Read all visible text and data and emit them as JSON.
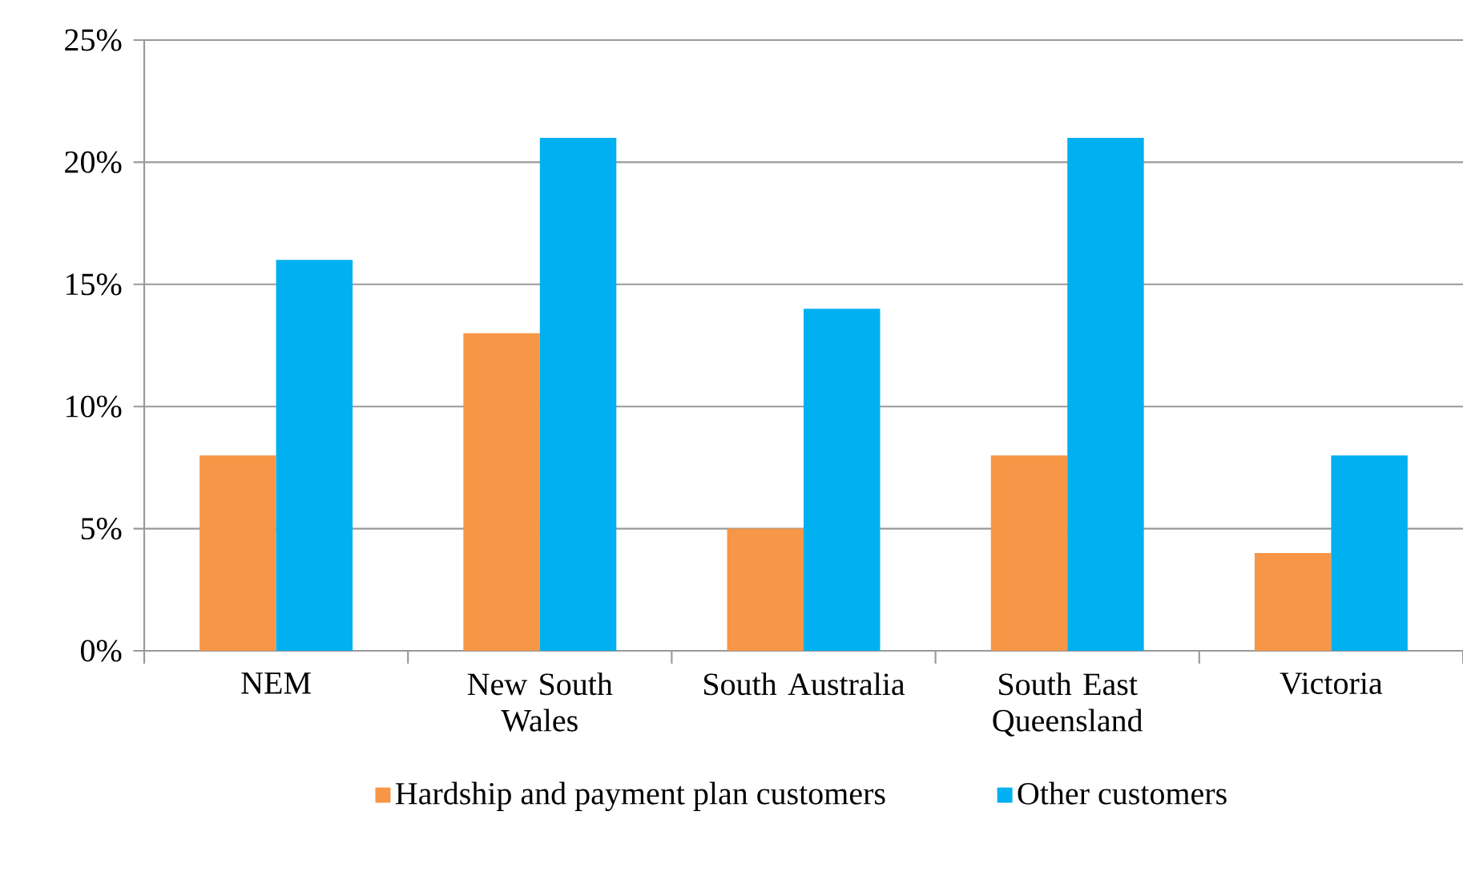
{
  "chart_data": {
    "type": "bar",
    "categories": [
      "NEM",
      "New South Wales",
      "South Australia",
      "South East Queensland",
      "Victoria"
    ],
    "series": [
      {
        "name": "Hardship and payment plan customers",
        "color": "#f79646",
        "values": [
          8,
          13,
          5,
          8,
          4
        ]
      },
      {
        "name": "Other customers",
        "color": "#00b0f0",
        "values": [
          16,
          21,
          14,
          21,
          8
        ]
      }
    ],
    "ylim": [
      0,
      25
    ],
    "yticks": [
      {
        "value": 0,
        "label": "0%"
      },
      {
        "value": 5,
        "label": "5%"
      },
      {
        "value": 10,
        "label": "10%"
      },
      {
        "value": 15,
        "label": "15%"
      },
      {
        "value": 20,
        "label": "20%"
      },
      {
        "value": 25,
        "label": "25%"
      }
    ],
    "grid": "y",
    "legend": "bottom"
  }
}
